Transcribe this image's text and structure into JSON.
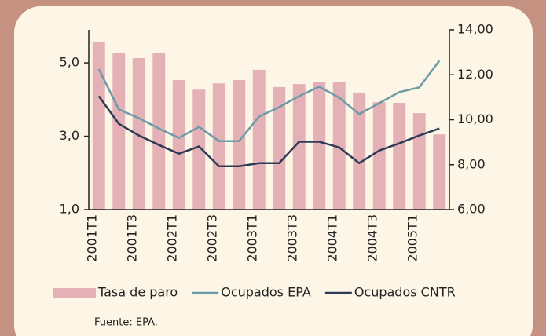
{
  "chart_data": {
    "type": "bar_line",
    "categories": [
      "2001T1",
      null,
      "2001T3",
      null,
      "2002T1",
      null,
      "2002T3",
      null,
      "2003T1",
      null,
      "2003T3",
      null,
      "2004T1",
      null,
      "2004T3",
      null,
      "2005T1",
      null
    ],
    "series": [
      {
        "name": "Tasa de paro",
        "type": "bar",
        "color": "#e4b2b6",
        "values": [
          5.58,
          5.26,
          5.13,
          5.26,
          4.53,
          4.27,
          4.44,
          4.53,
          4.81,
          4.34,
          4.42,
          4.47,
          4.47,
          4.19,
          3.93,
          3.91,
          3.63,
          3.05
        ]
      },
      {
        "name": "Ocupados EPA",
        "type": "line",
        "axis": "y2",
        "color": "#6b9ba7",
        "values": [
          12.25,
          10.46,
          10.07,
          9.61,
          9.19,
          9.68,
          9.05,
          9.05,
          10.14,
          10.56,
          11.05,
          11.47,
          10.98,
          10.25,
          10.74,
          11.23,
          11.44,
          12.63
        ]
      },
      {
        "name": "Ocupados CNTR",
        "type": "line",
        "axis": "y2",
        "color": "#2e3a56",
        "values": [
          11.05,
          9.82,
          9.3,
          8.88,
          8.49,
          8.81,
          7.93,
          7.93,
          8.07,
          8.07,
          9.02,
          9.02,
          8.77,
          8.07,
          8.63,
          8.95,
          9.3,
          9.61
        ]
      }
    ],
    "ylim": [
      1,
      5.9
    ],
    "yticks": [
      {
        "value": 1,
        "label": "1,0"
      },
      {
        "value": 3,
        "label": "3,0"
      },
      {
        "value": 5,
        "label": "5,0"
      }
    ],
    "y2lim": [
      6,
      14
    ],
    "y2ticks": [
      {
        "value": 6,
        "label": "6,00"
      },
      {
        "value": 8,
        "label": "8,00"
      },
      {
        "value": 10,
        "label": "10,00"
      },
      {
        "value": 12,
        "label": "12,00"
      },
      {
        "value": 14,
        "label": "14,00"
      }
    ],
    "legend": "bottom",
    "source": "Fuente: EPA."
  }
}
